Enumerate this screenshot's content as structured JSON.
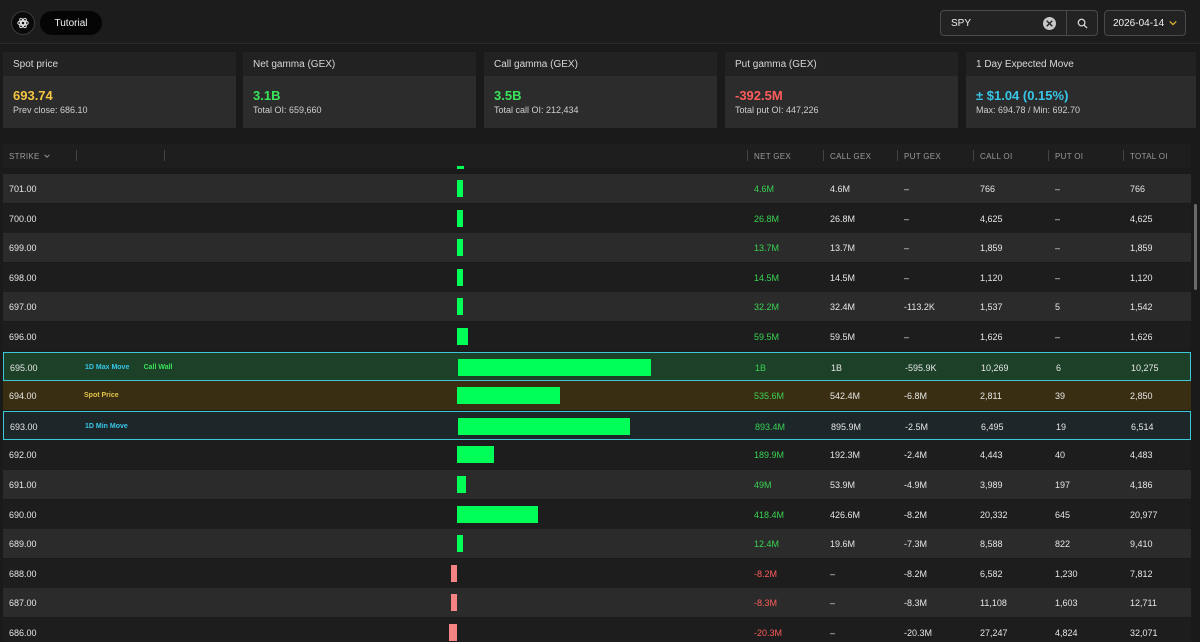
{
  "header": {
    "tutorial_label": "Tutorial",
    "search_value": "SPY",
    "date_value": "2026-04-14",
    "icons": [
      "openai-logo-icon",
      "clear-icon",
      "search-icon",
      "chevron-down-icon"
    ]
  },
  "cards": [
    {
      "label": "Spot price",
      "value": "693.74",
      "sub": "Prev close: 686.10",
      "color": "#f5c542"
    },
    {
      "label": "Net gamma (GEX)",
      "value": "3.1B",
      "sub": "Total OI: 659,660",
      "color": "#39e35a"
    },
    {
      "label": "Call gamma (GEX)",
      "value": "3.5B",
      "sub": "Total call OI: 212,434",
      "color": "#39e35a"
    },
    {
      "label": "Put gamma (GEX)",
      "value": "-392.5M",
      "sub": "Total put OI: 447,226",
      "color": "#ff5c5c"
    },
    {
      "label": "1 Day Expected Move",
      "value": "± $1.04 (0.15%)",
      "sub": "Max: 694.78 / Min: 692.70",
      "color": "#38c6e8"
    }
  ],
  "table": {
    "columns": {
      "strike": "STRIKE",
      "net_gex": "NET GEX",
      "call_gex": "CALL GEX",
      "put_gex": "PUT GEX",
      "call_oi": "CALL OI",
      "put_oi": "PUT OI",
      "total_oi": "TOTAL OI"
    },
    "rows": [
      {
        "strike": "701.00",
        "net": "4.6M",
        "call": "4.6M",
        "put": "–",
        "coi": "766",
        "poi": "–",
        "tot": "766",
        "bar": 4.6,
        "kind": "odd"
      },
      {
        "strike": "700.00",
        "net": "26.8M",
        "call": "26.8M",
        "put": "–",
        "coi": "4,625",
        "poi": "–",
        "tot": "4,625",
        "bar": 26.8,
        "kind": "even"
      },
      {
        "strike": "699.00",
        "net": "13.7M",
        "call": "13.7M",
        "put": "–",
        "coi": "1,859",
        "poi": "–",
        "tot": "1,859",
        "bar": 13.7,
        "kind": "odd"
      },
      {
        "strike": "698.00",
        "net": "14.5M",
        "call": "14.5M",
        "put": "–",
        "coi": "1,120",
        "poi": "–",
        "tot": "1,120",
        "bar": 14.5,
        "kind": "even"
      },
      {
        "strike": "697.00",
        "net": "32.2M",
        "call": "32.4M",
        "put": "-113.2K",
        "coi": "1,537",
        "poi": "5",
        "tot": "1,542",
        "bar": 32.2,
        "kind": "odd"
      },
      {
        "strike": "696.00",
        "net": "59.5M",
        "call": "59.5M",
        "put": "–",
        "coi": "1,626",
        "poi": "–",
        "tot": "1,626",
        "bar": 59.5,
        "kind": "even"
      },
      {
        "strike": "695.00",
        "net": "1B",
        "call": "1B",
        "put": "-595.9K",
        "coi": "10,269",
        "poi": "6",
        "tot": "10,275",
        "bar": 1000,
        "kind": "max",
        "tags": [
          {
            "text": "1D Max Move",
            "tone": "blue"
          },
          {
            "text": "Call Wall",
            "tone": "green"
          }
        ]
      },
      {
        "strike": "694.00",
        "net": "535.6M",
        "call": "542.4M",
        "put": "-6.8M",
        "coi": "2,811",
        "poi": "39",
        "tot": "2,850",
        "bar": 535.6,
        "kind": "spot",
        "tags": [
          {
            "text": "Spot Price",
            "tone": "gold"
          }
        ]
      },
      {
        "strike": "693.00",
        "net": "893.4M",
        "call": "895.9M",
        "put": "-2.5M",
        "coi": "6,495",
        "poi": "19",
        "tot": "6,514",
        "bar": 893.4,
        "kind": "min",
        "tags": [
          {
            "text": "1D Min Move",
            "tone": "blue"
          }
        ]
      },
      {
        "strike": "692.00",
        "net": "189.9M",
        "call": "192.3M",
        "put": "-2.4M",
        "coi": "4,443",
        "poi": "40",
        "tot": "4,483",
        "bar": 189.9,
        "kind": "even"
      },
      {
        "strike": "691.00",
        "net": "49M",
        "call": "53.9M",
        "put": "-4.9M",
        "coi": "3,989",
        "poi": "197",
        "tot": "4,186",
        "bar": 49,
        "kind": "odd"
      },
      {
        "strike": "690.00",
        "net": "418.4M",
        "call": "426.6M",
        "put": "-8.2M",
        "coi": "20,332",
        "poi": "645",
        "tot": "20,977",
        "bar": 418.4,
        "kind": "even"
      },
      {
        "strike": "689.00",
        "net": "12.4M",
        "call": "19.6M",
        "put": "-7.3M",
        "coi": "8,588",
        "poi": "822",
        "tot": "9,410",
        "bar": 12.4,
        "kind": "odd"
      },
      {
        "strike": "688.00",
        "net": "-8.2M",
        "call": "–",
        "put": "-8.2M",
        "coi": "6,582",
        "poi": "1,230",
        "tot": "7,812",
        "bar": -8.2,
        "kind": "even"
      },
      {
        "strike": "687.00",
        "net": "-8.3M",
        "call": "–",
        "put": "-8.3M",
        "coi": "11,108",
        "poi": "1,603",
        "tot": "12,711",
        "bar": -8.3,
        "kind": "odd"
      },
      {
        "strike": "686.00",
        "net": "-20.3M",
        "call": "–",
        "put": "-20.3M",
        "coi": "27,247",
        "poi": "4,824",
        "tot": "32,071",
        "bar": -20.3,
        "kind": "even"
      }
    ]
  },
  "colors": {
    "positive": "#39d353",
    "negative": "#ff5c5c",
    "bar_positive": "#00ff57",
    "bar_negative": "#f58383",
    "accent_blue": "#38c6e8",
    "spot_gold": "#f5c542"
  }
}
